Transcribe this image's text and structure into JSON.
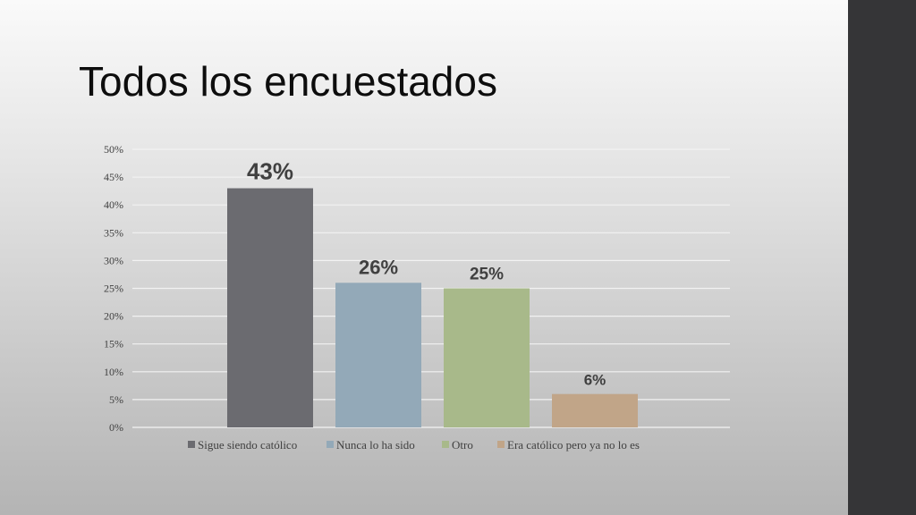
{
  "slide": {
    "title": "Todos los encuestados"
  },
  "chart_data": {
    "type": "bar",
    "title": "",
    "xlabel": "",
    "ylabel": "",
    "categories": [
      "Sigue siendo católico",
      "Nunca lo ha sido",
      "Otro",
      "Era católico pero ya no lo es"
    ],
    "values": [
      43,
      26,
      25,
      6
    ],
    "data_labels": [
      "43%",
      "26%",
      "25%",
      "6%"
    ],
    "colors": [
      "#6b6b70",
      "#93a9b8",
      "#a8b98a",
      "#c1a588"
    ],
    "ylim": [
      0,
      50
    ],
    "yticks": [
      0,
      5,
      10,
      15,
      20,
      25,
      30,
      35,
      40,
      45,
      50
    ],
    "ytick_labels": [
      "0%",
      "5%",
      "10%",
      "15%",
      "20%",
      "25%",
      "30%",
      "35%",
      "40%",
      "45%",
      "50%"
    ],
    "grid": true,
    "legend": "bottom"
  },
  "colors": {
    "gridline": "#f2f2f2",
    "right_bar": "#353537"
  }
}
